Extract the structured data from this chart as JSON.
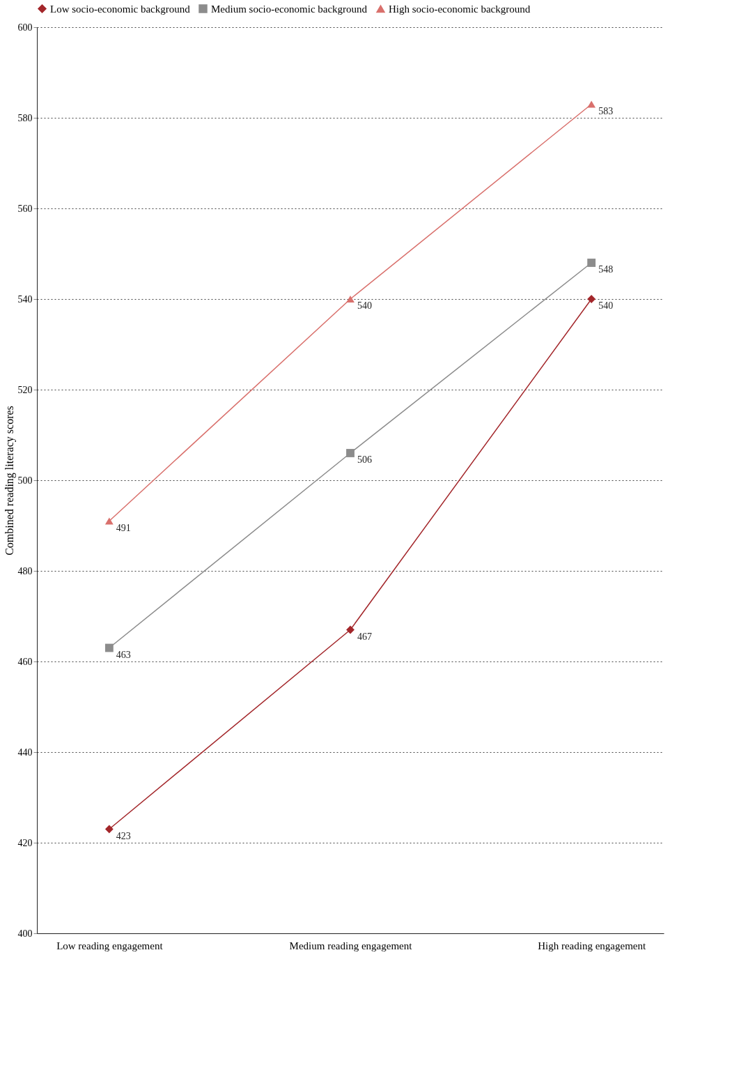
{
  "chart_data": {
    "type": "line",
    "ylabel": "Combined reading literacy scores",
    "categories": [
      "Low reading engagement",
      "Medium reading engagement",
      "High reading engagement"
    ],
    "series": [
      {
        "name": "Low socio-economic background",
        "color": "#a3262a",
        "marker": "diamond",
        "values": [
          423,
          467,
          540
        ]
      },
      {
        "name": "Medium socio-economic background",
        "color": "#8c8c8c",
        "marker": "square",
        "values": [
          463,
          506,
          548
        ]
      },
      {
        "name": "High socio-economic background",
        "color": "#d9706c",
        "marker": "triangle",
        "values": [
          491,
          540,
          583
        ]
      }
    ],
    "ylim": [
      400,
      600
    ],
    "yticks": [
      400,
      420,
      440,
      460,
      480,
      500,
      520,
      540,
      560,
      580,
      600
    ],
    "grid": "y",
    "legend": "top",
    "data_labels": true
  }
}
